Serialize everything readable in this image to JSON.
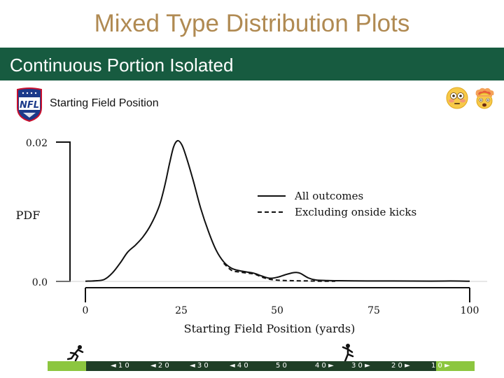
{
  "slide": {
    "title": "Mixed Type Distribution Plots",
    "banner": "Continuous Portion Isolated"
  },
  "header": {
    "logo_icon": "nfl-logo-icon",
    "chart_heading": "Starting Field Position",
    "emoji_icons": [
      "flushed-face-icon",
      "exploding-head-icon"
    ]
  },
  "chart_data": {
    "type": "line",
    "xlabel": "Starting Field Position (yards)",
    "ylabel": "PDF",
    "xlim": [
      0,
      100
    ],
    "ylim": [
      0,
      0.02
    ],
    "xticks": [
      "0",
      "25",
      "50",
      "75",
      "100"
    ],
    "yticks": [
      "0.0",
      "0.02"
    ],
    "legend_position": "right",
    "series": [
      {
        "name": "All outcomes",
        "style": "solid",
        "x": [
          0,
          3,
          5,
          7,
          9,
          11,
          13,
          15,
          17,
          19,
          20,
          21,
          22,
          23,
          24,
          25,
          26,
          28,
          30,
          32,
          34,
          36,
          38,
          40,
          42,
          44,
          46,
          48,
          50,
          52,
          54,
          55,
          56,
          58,
          60,
          63,
          66,
          70,
          75,
          80,
          85,
          90,
          95,
          100
        ],
        "y": [
          3e-05,
          0.0001,
          0.0003,
          0.0012,
          0.0026,
          0.0042,
          0.0052,
          0.0064,
          0.0081,
          0.0105,
          0.0123,
          0.0146,
          0.0172,
          0.0194,
          0.0202,
          0.0197,
          0.0183,
          0.0146,
          0.0105,
          0.0072,
          0.0045,
          0.0028,
          0.0019,
          0.00155,
          0.00135,
          0.00115,
          0.00075,
          0.00045,
          0.0006,
          0.00095,
          0.00125,
          0.00128,
          0.00115,
          0.0005,
          0.0002,
          0.00012,
          0.0001,
          8e-05,
          6e-05,
          6e-05,
          5e-05,
          4e-05,
          6e-05,
          3e-05
        ]
      },
      {
        "name": "Excluding onside kicks",
        "style": "dashed",
        "x": [
          36,
          38,
          40,
          42,
          44,
          46,
          48,
          50,
          52,
          54,
          56,
          58,
          60,
          62,
          65
        ],
        "y": [
          0.0026,
          0.0016,
          0.00135,
          0.0012,
          0.00105,
          0.0006,
          0.0003,
          0.00018,
          0.00012,
          0.0001,
          8e-05,
          7e-05,
          4e-05,
          3e-05,
          3e-05
        ]
      }
    ]
  },
  "field": {
    "yard_labels": [
      "◄ 1 0",
      "◄ 2 0",
      "◄ 3 0",
      "◄ 4 0",
      "5 0",
      "4 0 ►",
      "3 0 ►",
      "2 0 ►",
      "1 0 ►"
    ],
    "icons": [
      "kickoff-runner-icon",
      "kicker-icon"
    ]
  }
}
